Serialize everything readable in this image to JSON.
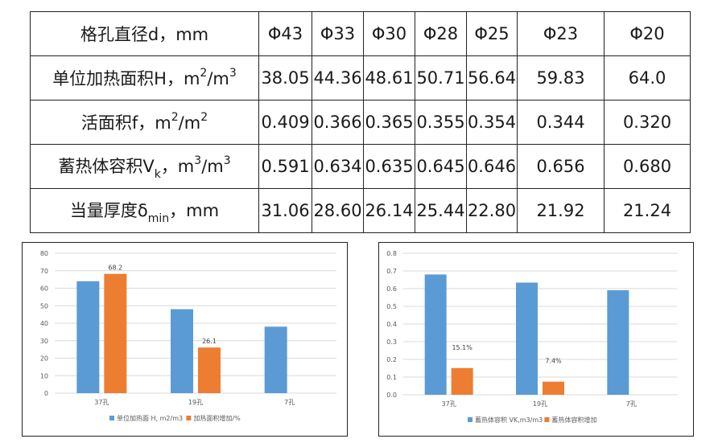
{
  "table": {
    "header_label": "格孔直径d，mm",
    "columns": [
      "Φ43",
      "Φ33",
      "Φ30",
      "Φ28",
      "Φ25",
      "Φ23",
      "Φ20"
    ],
    "rows": [
      {
        "label_main": "单位加热面积H，m",
        "sup1": "2",
        "label_mid": "/m",
        "sup2": "3",
        "values": [
          "38.05",
          "44.36",
          "48.61",
          "50.71",
          "56.64",
          "59.83",
          "64.0"
        ]
      },
      {
        "label_main": "活面积f，m",
        "sup1": "2",
        "label_mid": "/m",
        "sup2": "2",
        "values": [
          "0.409",
          "0.366",
          "0.365",
          "0.355",
          "0.354",
          "0.344",
          "0.320"
        ]
      },
      {
        "label_main": "蓄热体容积V",
        "sub1": "k",
        "label_mid": "，m",
        "sup1": "3",
        "label_end": "/m",
        "sup2": "3",
        "values": [
          "0.591",
          "0.634",
          "0.635",
          "0.645",
          "0.646",
          "0.656",
          "0.680"
        ]
      },
      {
        "label_main": "当量厚度δ",
        "sub1": "min",
        "label_mid": "，mm",
        "values": [
          "31.06",
          "28.60",
          "26.14",
          "25.44",
          "22.80",
          "21.92",
          "21.24"
        ]
      }
    ]
  },
  "colors": {
    "blue": "#5b9bd5",
    "orange": "#ed7d31",
    "grid": "#d9d9d9",
    "axis_text": "#595959"
  },
  "chart_data": [
    {
      "type": "bar",
      "categories": [
        "37孔",
        "19孔",
        "7孔"
      ],
      "ylim": [
        0,
        80
      ],
      "yticks": [
        0,
        10,
        20,
        30,
        40,
        50,
        60,
        70,
        80
      ],
      "series": [
        {
          "name": "单位加热面 H, m2/m3",
          "values": [
            64.0,
            48.0,
            38.0
          ],
          "color": "#5b9bd5"
        },
        {
          "name": "加热面积增加/%",
          "values": [
            68.2,
            26.1,
            null
          ],
          "color": "#ed7d31"
        }
      ],
      "data_labels": [
        {
          "series": 1,
          "index": 0,
          "text": "68.2"
        },
        {
          "series": 1,
          "index": 1,
          "text": "26.1"
        }
      ],
      "legend": "bottom",
      "grid": true
    },
    {
      "type": "bar",
      "categories": [
        "37孔",
        "19孔",
        "7孔"
      ],
      "ylim": [
        0,
        0.8
      ],
      "yticks": [
        0,
        0.1,
        0.2,
        0.3,
        0.4,
        0.5,
        0.6,
        0.7,
        0.8
      ],
      "series": [
        {
          "name": "蓄热体容积 VK,m3/m3",
          "values": [
            0.68,
            0.634,
            0.591
          ],
          "color": "#5b9bd5"
        },
        {
          "name": "蓄热体容积增加",
          "values": [
            0.151,
            0.074,
            null
          ],
          "color": "#ed7d31"
        }
      ],
      "data_labels": [
        {
          "series": 1,
          "index": 0,
          "text": "15.1%"
        },
        {
          "series": 1,
          "index": 1,
          "text": "7.4%"
        }
      ],
      "legend": "bottom",
      "grid": true
    }
  ]
}
